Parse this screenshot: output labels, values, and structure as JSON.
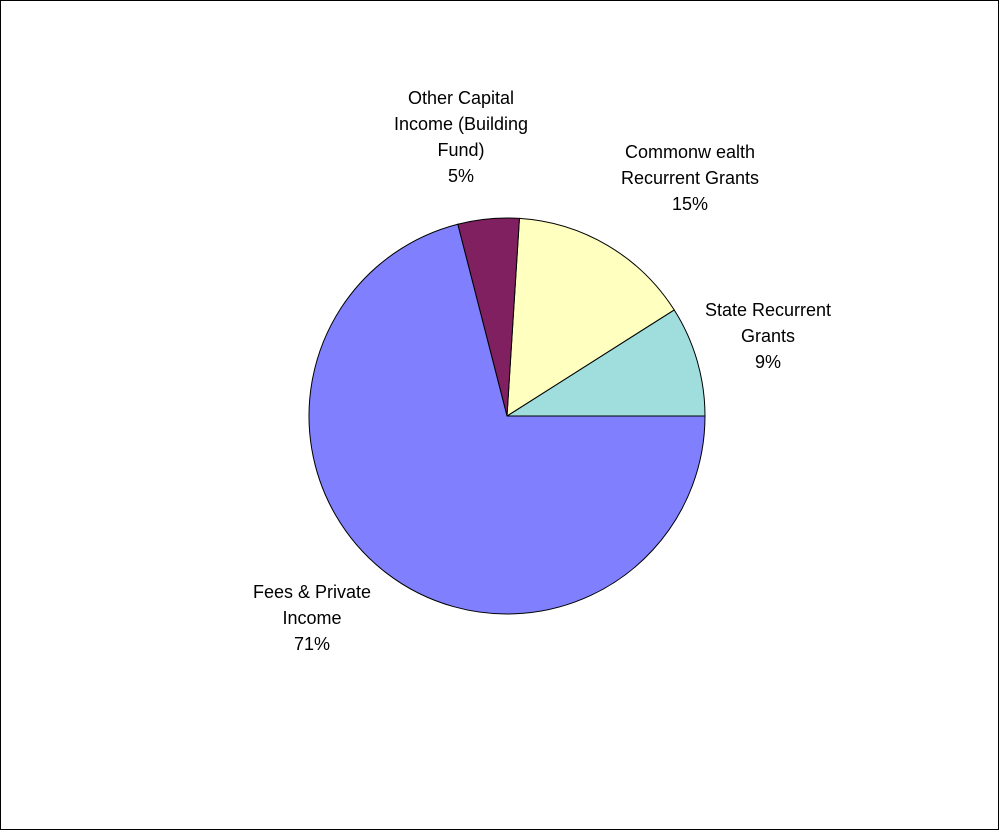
{
  "chart_data": {
    "type": "pie",
    "title": "",
    "slices": [
      {
        "label_lines": [
          "State Recurrent",
          "Grants"
        ],
        "value": 9,
        "value_text": "9%",
        "color": "#a0dede"
      },
      {
        "label_lines": [
          "Commonw ealth",
          "Recurrent Grants"
        ],
        "value": 15,
        "value_text": "15%",
        "color": "#ffffc0"
      },
      {
        "label_lines": [
          "Other Capital",
          "Income (Building",
          "Fund)"
        ],
        "value": 5,
        "value_text": "5%",
        "color": "#802060"
      },
      {
        "label_lines": [
          "Fees & Private",
          "Income"
        ],
        "value": 71,
        "value_text": "71%",
        "color": "#8080ff"
      }
    ],
    "legend": "none",
    "direction": "counterclockwise",
    "start_angle_deg": 0
  }
}
